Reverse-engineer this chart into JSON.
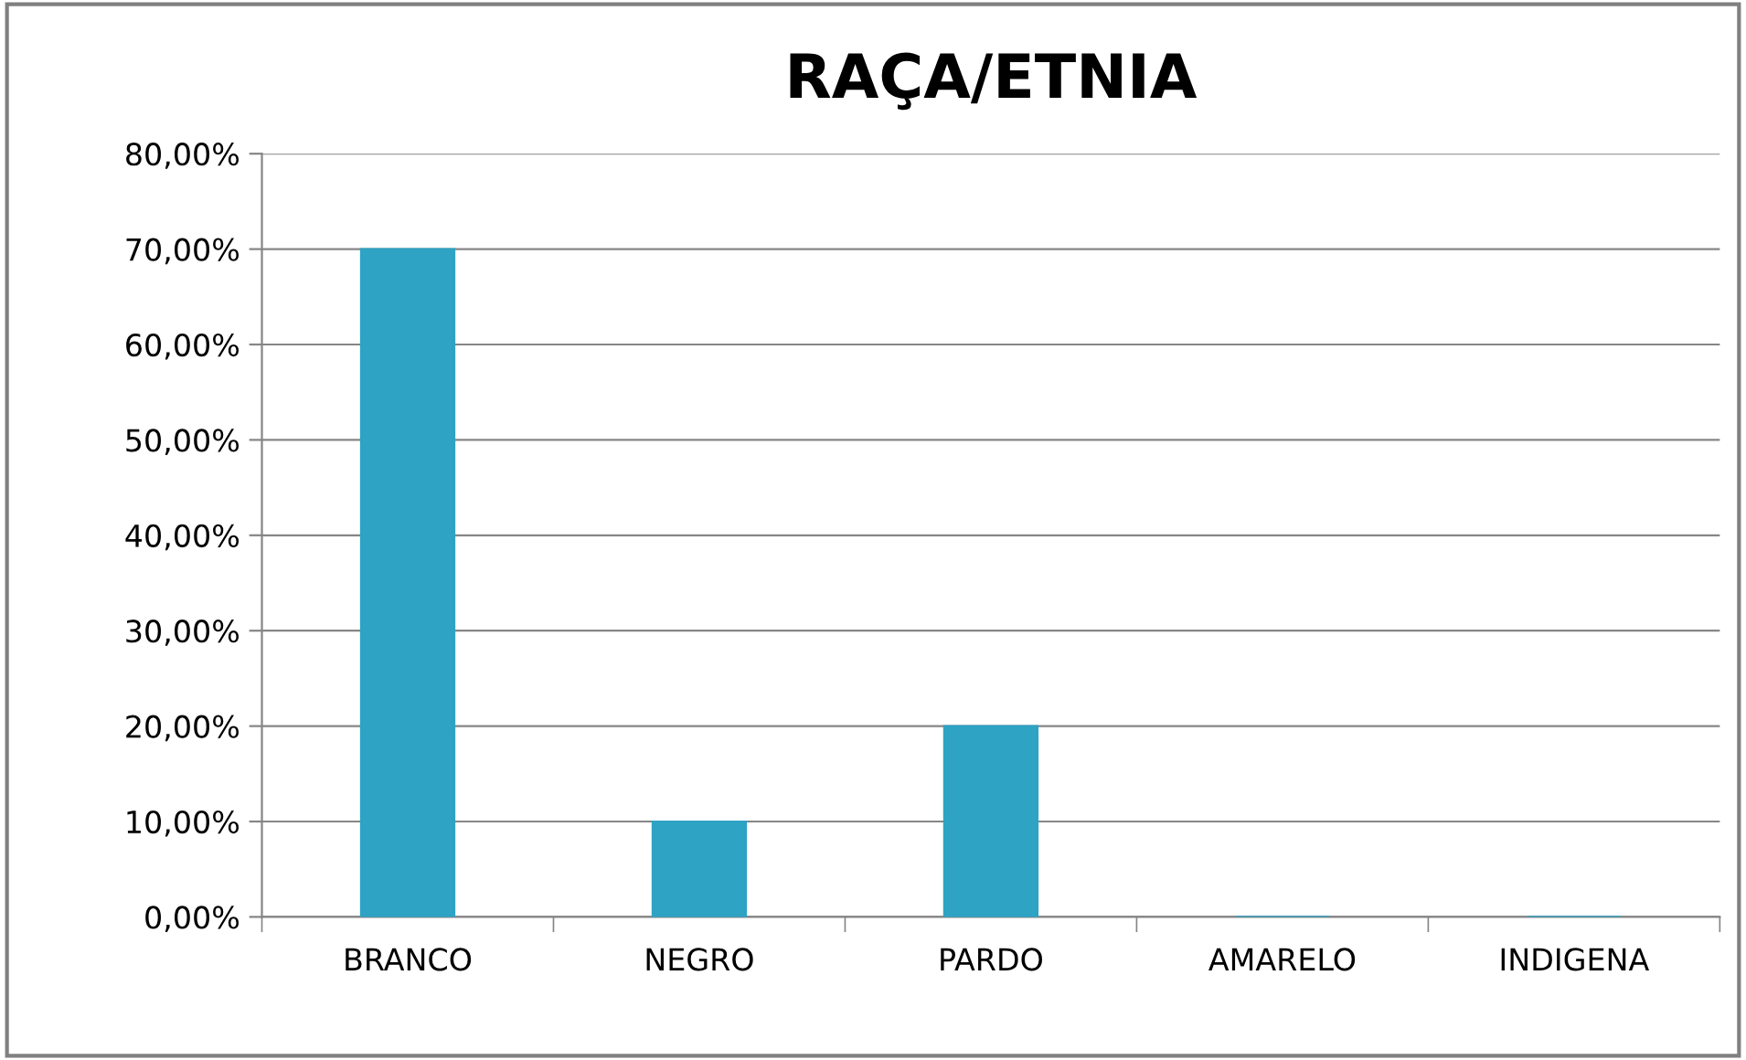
{
  "chart_data": {
    "type": "bar",
    "title": "RAÇA/ETNIA",
    "categories": [
      "BRANCO",
      "NEGRO",
      "PARDO",
      "AMARELO",
      "INDIGENA"
    ],
    "values": [
      70,
      10,
      20,
      0,
      0
    ],
    "color": "#2ea3c4",
    "ylim": [
      0,
      80
    ],
    "yticks": [
      {
        "value": 0,
        "label": "0,00%"
      },
      {
        "value": 10,
        "label": "10,00%"
      },
      {
        "value": 20,
        "label": "20,00%"
      },
      {
        "value": 30,
        "label": "30,00%"
      },
      {
        "value": 40,
        "label": "40,00%"
      },
      {
        "value": 50,
        "label": "50,00%"
      },
      {
        "value": 60,
        "label": "60,00%"
      },
      {
        "value": 70,
        "label": "70,00%"
      },
      {
        "value": 80,
        "label": "80,00%"
      }
    ],
    "grid": "y",
    "legend": false
  }
}
